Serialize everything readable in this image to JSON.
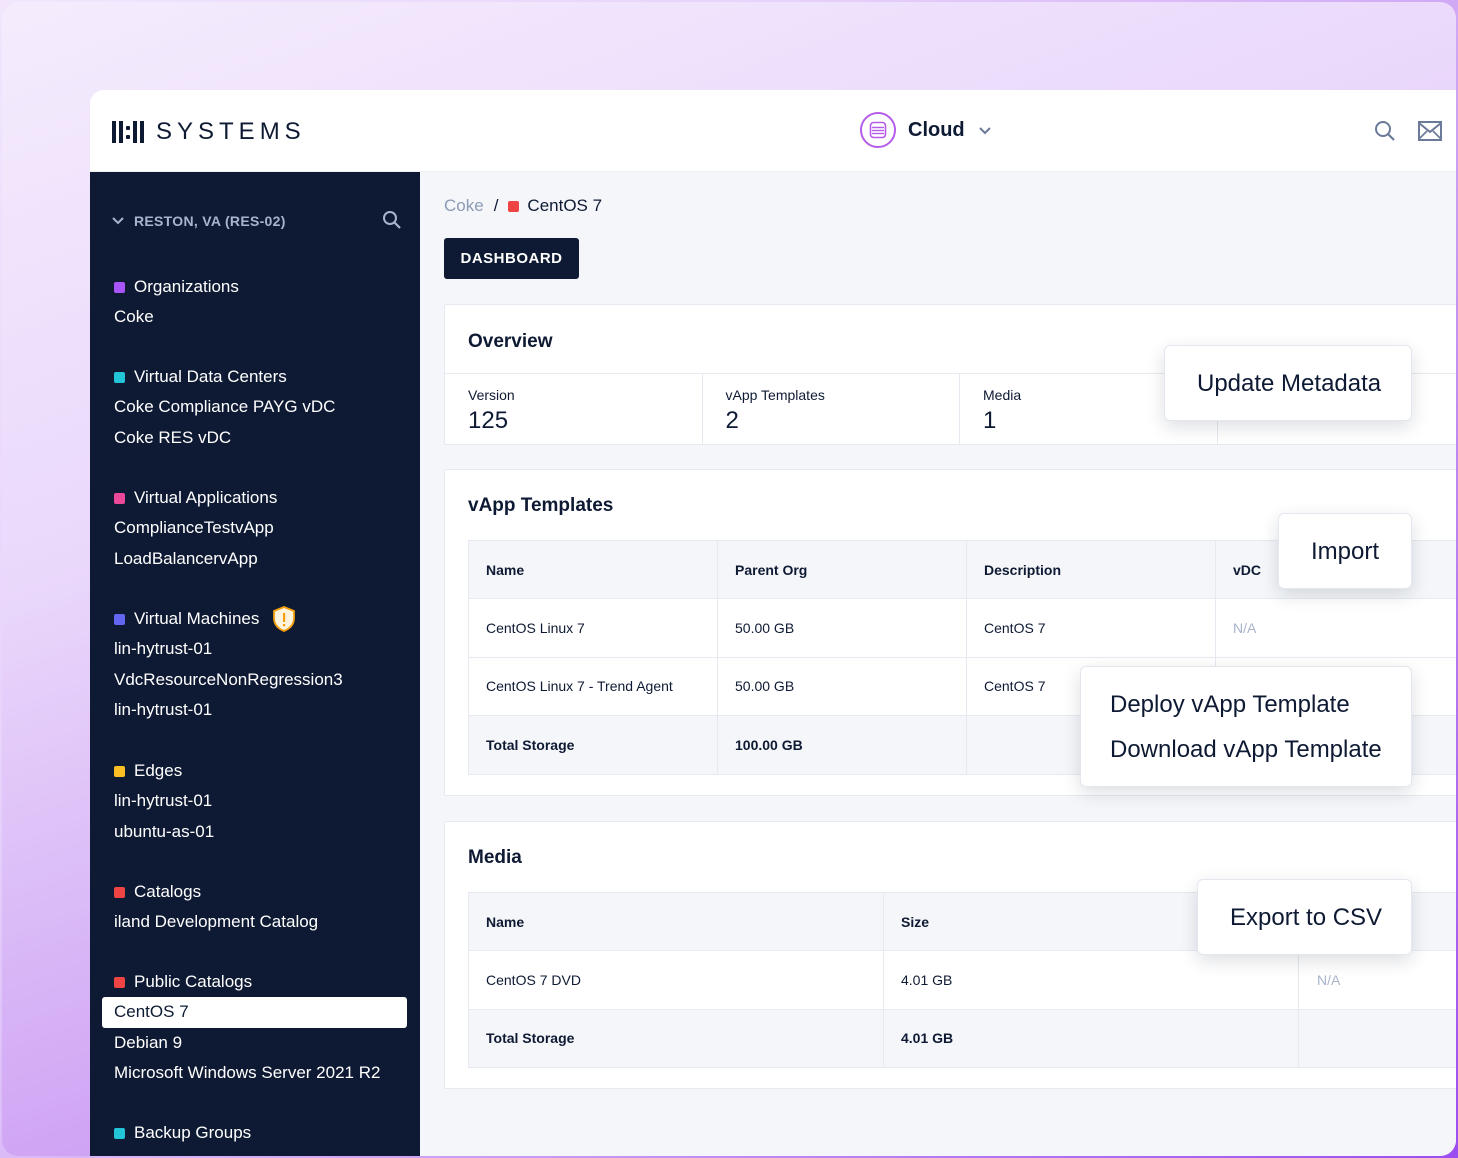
{
  "brand": {
    "logo_text": "SYSTEMS"
  },
  "header": {
    "cloud_label": "Cloud"
  },
  "sidebar": {
    "region": "RESTON, VA (RES-02)",
    "groups": [
      {
        "title": "Organizations",
        "color": "#a855f7",
        "items": [
          "Coke"
        ]
      },
      {
        "title": "Virtual Data Centers",
        "color": "#22c5d8",
        "items": [
          "Coke Compliance PAYG vDC",
          "Coke RES vDC"
        ]
      },
      {
        "title": "Virtual Applications",
        "color": "#ec4899",
        "items": [
          "ComplianceTestvApp",
          "LoadBalancervApp"
        ]
      },
      {
        "title": "Virtual Machines",
        "color": "#6366f1",
        "items": [
          "lin-hytrust-01",
          "VdcResourceNonRegression3",
          "lin-hytrust-01"
        ]
      },
      {
        "title": "Edges",
        "color": "#fbbf24",
        "items": [
          "lin-hytrust-01",
          "ubuntu-as-01"
        ]
      },
      {
        "title": "Catalogs",
        "color": "#ef4444",
        "items": [
          "iland Development Catalog"
        ]
      },
      {
        "title": "Public Catalogs",
        "color": "#ef4444",
        "items": [
          "CentOS 7",
          "Debian 9",
          "Microsoft Windows Server 2021 R2"
        ]
      },
      {
        "title": "Backup Groups",
        "color": "#22c5d8",
        "items": []
      }
    ]
  },
  "breadcrumb": {
    "parent": "Coke",
    "separator": "/",
    "current": "CentOS 7",
    "current_color": "#ef4444"
  },
  "dashboard_button": "DASHBOARD",
  "overview": {
    "title": "Overview",
    "stats": [
      {
        "label": "Version",
        "value": "125"
      },
      {
        "label": "vApp Templates",
        "value": "2"
      },
      {
        "label": "Media",
        "value": "1"
      }
    ]
  },
  "vapp_templates": {
    "title": "vApp Templates",
    "columns": [
      "Name",
      "Parent Org",
      "Description",
      "vDC"
    ],
    "rows": [
      [
        "CentOS Linux 7",
        "50.00 GB",
        "CentOS 7",
        "N/A"
      ],
      [
        "CentOS Linux 7 - Trend Agent",
        "50.00 GB",
        "CentOS 7",
        ""
      ]
    ],
    "total": [
      "Total Storage",
      "100.00 GB",
      "",
      ""
    ]
  },
  "media": {
    "title": "Media",
    "columns": [
      "Name",
      "Size",
      ""
    ],
    "rows": [
      [
        "CentOS 7 DVD",
        "4.01 GB",
        "N/A"
      ]
    ],
    "total": [
      "Total Storage",
      "4.01 GB",
      ""
    ]
  },
  "popovers": {
    "update_metadata": "Update Metadata",
    "import": "Import",
    "deploy": "Deploy vApp Template",
    "download": "Download vApp Template",
    "export": "Export to CSV"
  }
}
